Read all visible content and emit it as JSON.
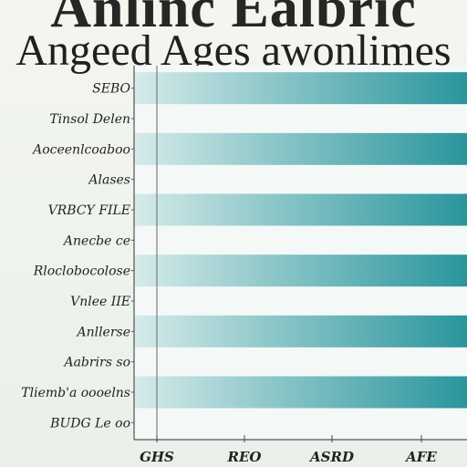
{
  "title": "Anlinc Ealbric",
  "subtitle": "Angeed Ages awonlimes",
  "colors": {
    "bar_light": "#cfe6e6",
    "bar_dark": "#2f9aa1",
    "axis": "#555555",
    "panel": "#f4f9f8"
  },
  "chart_data": {
    "type": "bar",
    "orientation": "horizontal",
    "title": "Anlinc Ealbric",
    "subtitle": "Angeed Ages awonlimes",
    "xlabel": "",
    "ylabel": "",
    "grid": false,
    "xlim": [
      0,
      100
    ],
    "x_ticks": [
      "GHS",
      "REO",
      "ASRD",
      "AFE"
    ],
    "categories": [
      "SEBO",
      "Tinsol Delen",
      "Aoceenlcoaboo",
      "Alases",
      "VRBCY FILE",
      "Anecbe ce",
      "Rloclobocolose",
      "Vnlee IIE",
      "Anllerse",
      "Aabrirs so",
      "Tliemb'a oooelns",
      "BUDG Le oo"
    ],
    "values": [
      100,
      0,
      100,
      0,
      100,
      0,
      100,
      0,
      100,
      0,
      100,
      0
    ]
  }
}
